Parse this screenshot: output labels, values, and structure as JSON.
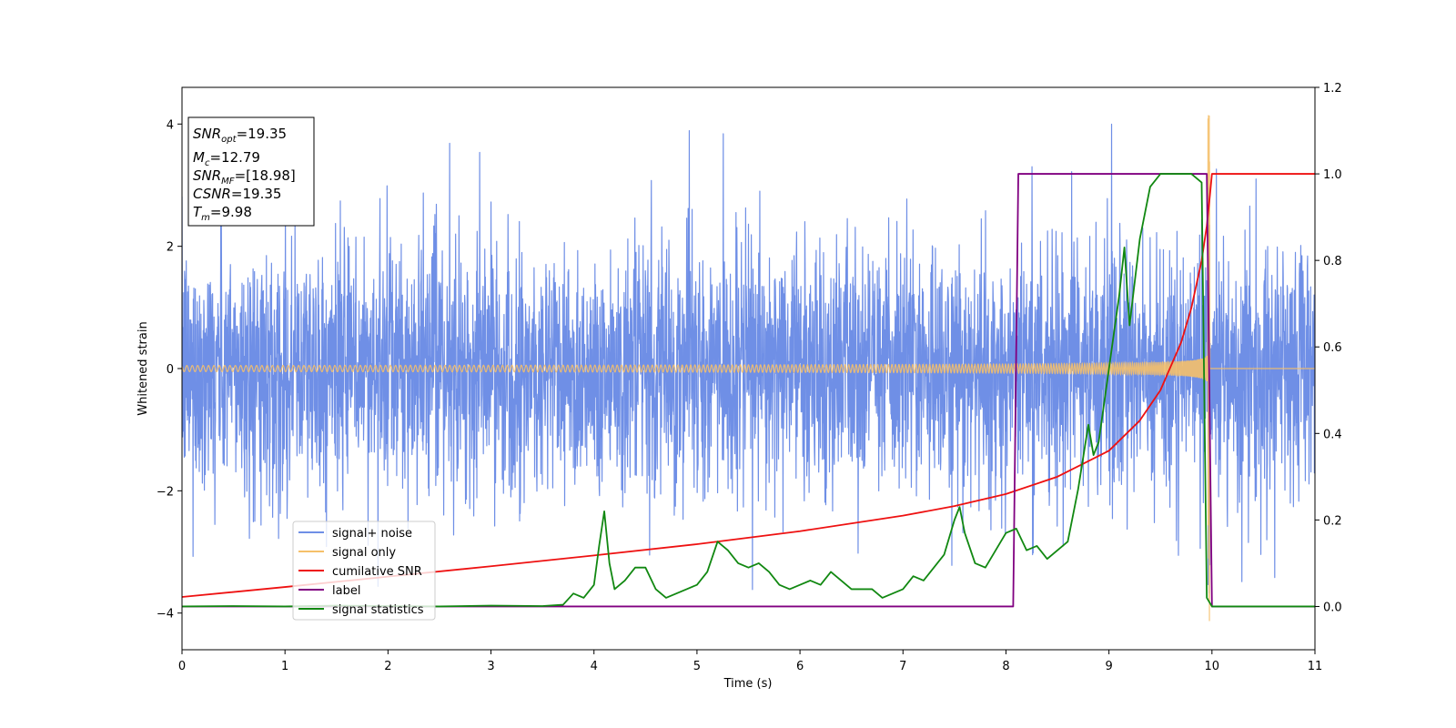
{
  "chart_data": {
    "type": "line",
    "xlabel": "Time (s)",
    "ylabel": "Whitened strain",
    "xlim": [
      0,
      11
    ],
    "ylim": [
      -4.6,
      4.6
    ],
    "y2lim": [
      -0.1,
      1.2
    ],
    "x_ticks": [
      0,
      1,
      2,
      3,
      4,
      5,
      6,
      7,
      8,
      9,
      10,
      11
    ],
    "y_ticks": [
      -4,
      -2,
      0,
      2,
      4
    ],
    "y2_ticks": [
      0.0,
      0.2,
      0.4,
      0.6,
      0.8,
      1.0,
      1.2
    ],
    "legend_position": "lower-left",
    "info_box": [
      {
        "label": "SNR",
        "sub": "opt",
        "value": "=19.35"
      },
      {
        "label": "M",
        "sub": "c",
        "value": "=12.79"
      },
      {
        "label": "SNR",
        "sub": "MF",
        "value": "=[18.98]"
      },
      {
        "label": "CSNR",
        "sub": "",
        "value": "=19.35"
      },
      {
        "label": "T",
        "sub": "m",
        "value": "=9.98"
      }
    ],
    "series": [
      {
        "name": "signal+ noise",
        "color": "#6f8fe6",
        "axis": "left",
        "kind": "noise",
        "sigma": 1.0,
        "range": [
          -4.15,
          4.18
        ]
      },
      {
        "name": "signal only",
        "color": "#f5c06a",
        "axis": "left",
        "kind": "chirp",
        "merger_time": 9.98,
        "peak_amplitude": 4.2,
        "start_amplitude": 0.05
      },
      {
        "name": "cumilative SNR",
        "color": "#ee1111",
        "axis": "right",
        "x": [
          0,
          1,
          2,
          3,
          4,
          5,
          6,
          7,
          7.5,
          8,
          8.5,
          9,
          9.3,
          9.5,
          9.7,
          9.8,
          9.9,
          9.95,
          9.98,
          10.0,
          11
        ],
        "y": [
          0.022,
          0.045,
          0.069,
          0.093,
          0.118,
          0.144,
          0.174,
          0.21,
          0.232,
          0.26,
          0.3,
          0.36,
          0.43,
          0.5,
          0.61,
          0.69,
          0.8,
          0.88,
          0.95,
          1.0,
          1.0
        ]
      },
      {
        "name": "label",
        "color": "#800080",
        "axis": "right",
        "x": [
          0,
          8.07,
          8.12,
          9.95,
          10.0,
          11
        ],
        "y": [
          0,
          0,
          1,
          1,
          0,
          0
        ]
      },
      {
        "name": "signal statistics",
        "color": "#118811",
        "axis": "right",
        "x": [
          0,
          0.5,
          1,
          1.5,
          2,
          2.5,
          3,
          3.5,
          3.7,
          3.8,
          3.9,
          4.0,
          4.05,
          4.1,
          4.15,
          4.2,
          4.3,
          4.4,
          4.5,
          4.6,
          4.7,
          4.8,
          4.9,
          5.0,
          5.1,
          5.2,
          5.3,
          5.4,
          5.5,
          5.6,
          5.7,
          5.8,
          5.9,
          6.0,
          6.1,
          6.2,
          6.3,
          6.4,
          6.5,
          6.6,
          6.7,
          6.8,
          6.9,
          7.0,
          7.1,
          7.2,
          7.3,
          7.4,
          7.5,
          7.55,
          7.6,
          7.7,
          7.8,
          7.9,
          8.0,
          8.1,
          8.2,
          8.3,
          8.4,
          8.5,
          8.6,
          8.7,
          8.8,
          8.85,
          8.9,
          9.0,
          9.1,
          9.15,
          9.2,
          9.25,
          9.3,
          9.4,
          9.5,
          9.6,
          9.7,
          9.8,
          9.9,
          9.95,
          10.0,
          10.05,
          11.0
        ],
        "y": [
          0.0,
          0.001,
          0.0,
          0.002,
          0.001,
          0.0,
          0.002,
          0.001,
          0.004,
          0.03,
          0.02,
          0.05,
          0.14,
          0.22,
          0.1,
          0.04,
          0.06,
          0.09,
          0.09,
          0.04,
          0.02,
          0.03,
          0.04,
          0.05,
          0.08,
          0.15,
          0.13,
          0.1,
          0.09,
          0.1,
          0.08,
          0.05,
          0.04,
          0.05,
          0.06,
          0.05,
          0.08,
          0.06,
          0.04,
          0.04,
          0.04,
          0.02,
          0.03,
          0.04,
          0.07,
          0.06,
          0.09,
          0.12,
          0.2,
          0.23,
          0.17,
          0.1,
          0.09,
          0.13,
          0.17,
          0.18,
          0.13,
          0.14,
          0.11,
          0.13,
          0.15,
          0.27,
          0.42,
          0.35,
          0.38,
          0.55,
          0.72,
          0.83,
          0.65,
          0.75,
          0.85,
          0.97,
          1.0,
          1.0,
          1.0,
          1.0,
          0.98,
          0.02,
          0.0,
          0.0,
          0.0
        ]
      }
    ]
  }
}
